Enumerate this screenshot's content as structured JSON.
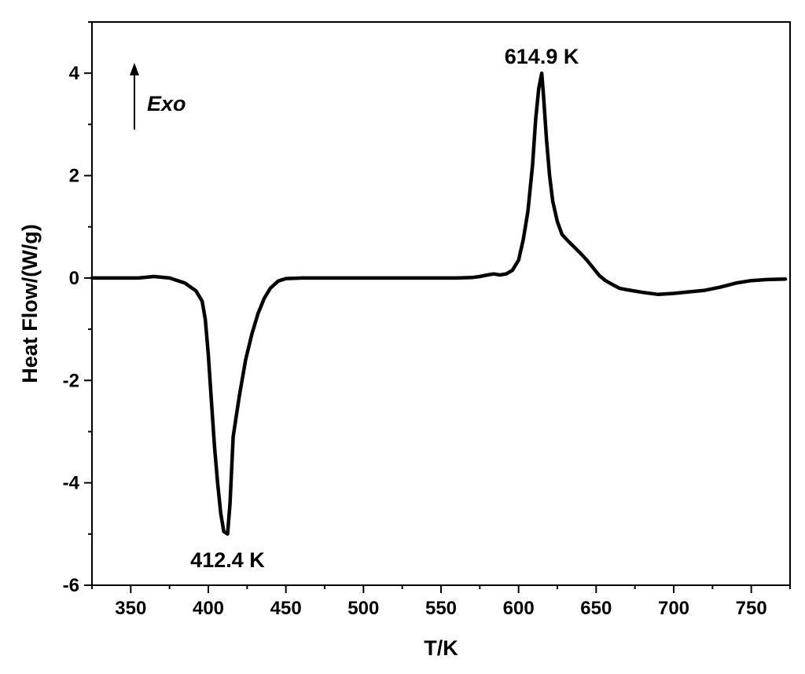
{
  "chart_data": {
    "type": "line",
    "title": "",
    "xlabel": "T/K",
    "ylabel": "Heat Flow/(W/g)",
    "xlim": [
      325,
      775
    ],
    "ylim": [
      -6,
      5
    ],
    "x_ticks": [
      350,
      400,
      450,
      500,
      550,
      600,
      650,
      700,
      750
    ],
    "y_ticks": [
      -6,
      -4,
      -2,
      0,
      2,
      4
    ],
    "grid": false,
    "legend": "none",
    "series": [
      {
        "color": "#000000",
        "x": [
          325,
          340,
          355,
          365,
          375,
          385,
          392,
          396,
          398,
          400,
          402,
          404,
          406,
          408,
          410,
          412.4,
          414,
          416,
          418,
          420,
          424,
          428,
          432,
          436,
          440,
          445,
          450,
          460,
          480,
          500,
          520,
          540,
          560,
          570,
          575,
          580,
          584,
          588,
          592,
          596,
          600,
          603,
          606,
          609,
          611,
          613,
          614.9,
          616,
          618,
          620,
          622,
          625,
          628,
          632,
          636,
          640,
          644,
          648,
          652,
          656,
          660,
          665,
          670,
          680,
          690,
          700,
          710,
          720,
          730,
          740,
          750,
          760,
          772
        ],
        "y": [
          0.0,
          0.0,
          0.0,
          0.03,
          0.0,
          -0.1,
          -0.25,
          -0.45,
          -0.8,
          -1.5,
          -2.4,
          -3.3,
          -4.0,
          -4.6,
          -4.95,
          -5.0,
          -4.4,
          -3.1,
          -2.7,
          -2.3,
          -1.6,
          -1.1,
          -0.7,
          -0.4,
          -0.2,
          -0.06,
          -0.01,
          0.0,
          0.0,
          0.0,
          0.0,
          0.0,
          0.0,
          0.01,
          0.03,
          0.06,
          0.08,
          0.06,
          0.08,
          0.15,
          0.35,
          0.75,
          1.3,
          2.2,
          3.1,
          3.7,
          4.0,
          3.6,
          2.7,
          2.0,
          1.5,
          1.1,
          0.85,
          0.72,
          0.6,
          0.48,
          0.35,
          0.2,
          0.05,
          -0.05,
          -0.12,
          -0.2,
          -0.23,
          -0.28,
          -0.32,
          -0.3,
          -0.27,
          -0.24,
          -0.18,
          -0.1,
          -0.05,
          -0.03,
          -0.02
        ]
      }
    ],
    "annotations": [
      {
        "text": "614.9 K",
        "x": 614.9,
        "y": 4.0
      },
      {
        "text": "412.4 K",
        "x": 412.4,
        "y": -5.0
      }
    ],
    "direction_note": "Exo"
  }
}
